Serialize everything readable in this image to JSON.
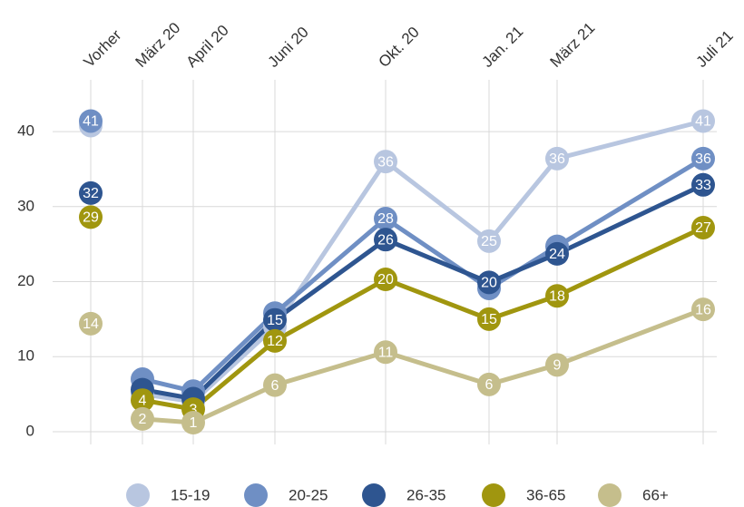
{
  "chart_data": {
    "type": "line",
    "categories": [
      "Vorher",
      "März 20",
      "April 20",
      "Juni 20",
      "Okt. 20",
      "Jan. 21",
      "März 21",
      "Juli 21"
    ],
    "series": [
      {
        "name": "15-19",
        "color": "#b8c6e0",
        "values": [
          40.8,
          5.0,
          4.0,
          14.0,
          36.0,
          25.4,
          36.4,
          41.4
        ],
        "value_labels": [
          null,
          null,
          null,
          null,
          "36",
          "25",
          "36",
          "41"
        ]
      },
      {
        "name": "20-25",
        "color": "#6f8fc4",
        "values": [
          41.4,
          7.0,
          5.4,
          15.8,
          28.4,
          19.1,
          24.7,
          36.4
        ],
        "value_labels": [
          "41",
          null,
          null,
          null,
          "28",
          null,
          null,
          "36"
        ]
      },
      {
        "name": "26-35",
        "color": "#2e5590",
        "values": [
          31.8,
          5.6,
          4.4,
          14.9,
          25.6,
          19.9,
          23.7,
          32.9
        ],
        "value_labels": [
          "32",
          null,
          null,
          "15",
          "26",
          "20",
          "24",
          "33"
        ]
      },
      {
        "name": "36-65",
        "color": "#a0960f",
        "values": [
          28.6,
          4.2,
          3.0,
          12.1,
          20.3,
          15.0,
          18.1,
          27.2
        ],
        "value_labels": [
          "29",
          "4",
          "3",
          "12",
          "20",
          "15",
          "18",
          "27"
        ]
      },
      {
        "name": "66+",
        "color": "#c5be8c",
        "values": [
          14.4,
          1.7,
          1.2,
          6.2,
          10.6,
          6.3,
          8.9,
          16.3
        ],
        "value_labels": [
          "14",
          "2",
          "1",
          "6",
          "11",
          "6",
          "9",
          "16"
        ]
      }
    ],
    "ylim": [
      -1.7,
      46.9
    ],
    "yticks": [
      0,
      10,
      20,
      30,
      40
    ],
    "grid": true
  }
}
